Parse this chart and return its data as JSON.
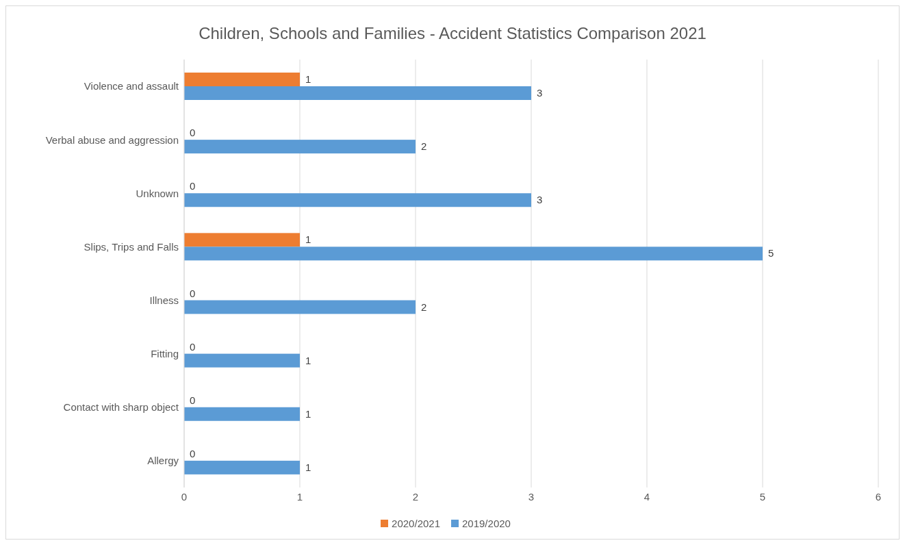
{
  "chart_data": {
    "type": "bar",
    "orientation": "horizontal",
    "title": "Children, Schools and Families - Accident Statistics Comparison 2021",
    "categories": [
      "Violence and assault",
      "Verbal abuse and aggression",
      "Unknown",
      "Slips, Trips and Falls",
      "Illness",
      "Fitting",
      "Contact with sharp object",
      "Allergy"
    ],
    "series": [
      {
        "name": "2020/2021",
        "color": "#ed7d31",
        "values": [
          1,
          0,
          0,
          1,
          0,
          0,
          0,
          0
        ]
      },
      {
        "name": "2019/2020",
        "color": "#5b9bd5",
        "values": [
          3,
          2,
          3,
          5,
          2,
          1,
          1,
          1
        ]
      }
    ],
    "xlim": [
      0,
      6
    ],
    "xticks": [
      0,
      1,
      2,
      3,
      4,
      5,
      6
    ],
    "grid": "x",
    "legend": "bottom",
    "data_labels": true
  }
}
